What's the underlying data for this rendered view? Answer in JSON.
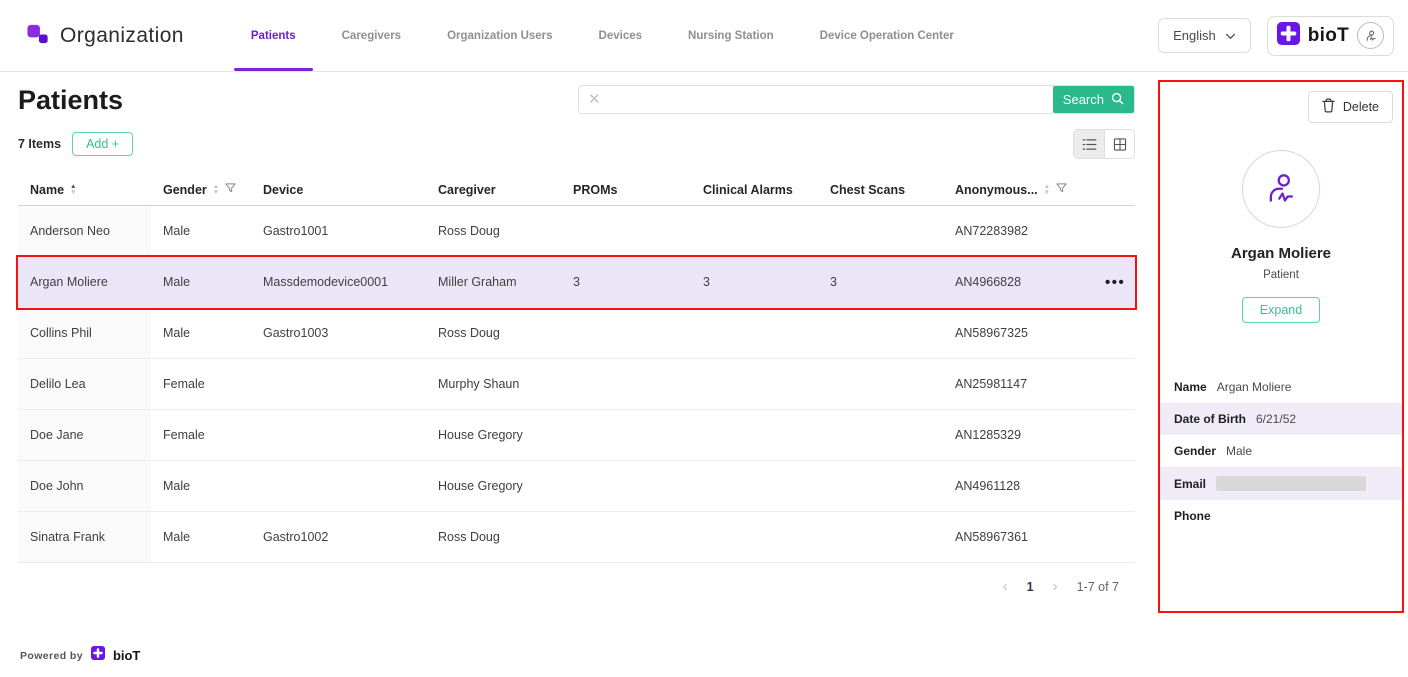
{
  "nav": {
    "logo_text": "Organization",
    "tabs": [
      {
        "label": "Patients",
        "active": true
      },
      {
        "label": "Caregivers",
        "active": false
      },
      {
        "label": "Organization Users",
        "active": false
      },
      {
        "label": "Devices",
        "active": false
      },
      {
        "label": "Nursing Station",
        "active": false
      },
      {
        "label": "Device Operation Center",
        "active": false
      }
    ],
    "language": "English",
    "brand": "bioT"
  },
  "page": {
    "title": "Patients",
    "items_count": "7 Items",
    "add_label": "Add +"
  },
  "search": {
    "value": "",
    "placeholder": "",
    "button_label": "Search"
  },
  "view_toggle": {
    "active": "list"
  },
  "table": {
    "columns": [
      {
        "key": "name",
        "label": "Name",
        "sort": "asc",
        "filter": false
      },
      {
        "key": "gender",
        "label": "Gender",
        "sort": "none",
        "filter": true
      },
      {
        "key": "device",
        "label": "Device",
        "sort": null,
        "filter": false
      },
      {
        "key": "caregiver",
        "label": "Caregiver",
        "sort": null,
        "filter": false
      },
      {
        "key": "proms",
        "label": "PROMs",
        "sort": null,
        "filter": false
      },
      {
        "key": "clinical_alarms",
        "label": "Clinical Alarms",
        "sort": null,
        "filter": false
      },
      {
        "key": "chest_scans",
        "label": "Chest Scans",
        "sort": null,
        "filter": false
      },
      {
        "key": "anonymous_id",
        "label": "Anonymous...",
        "sort": "none",
        "filter": true
      }
    ],
    "rows": [
      {
        "selected": false,
        "cells": [
          "Anderson Neo",
          "Male",
          "Gastro1001",
          "Ross Doug",
          "",
          "",
          "",
          "AN72283982"
        ]
      },
      {
        "selected": true,
        "cells": [
          "Argan Moliere",
          "Male",
          "Massdemodevice0001",
          "Miller Graham",
          "3",
          "3",
          "3",
          "AN4966828"
        ]
      },
      {
        "selected": false,
        "cells": [
          "Collins Phil",
          "Male",
          "Gastro1003",
          "Ross Doug",
          "",
          "",
          "",
          "AN58967325"
        ]
      },
      {
        "selected": false,
        "cells": [
          "Delilo Lea",
          "Female",
          "",
          "Murphy Shaun",
          "",
          "",
          "",
          "AN25981147"
        ]
      },
      {
        "selected": false,
        "cells": [
          "Doe Jane",
          "Female",
          "",
          "House Gregory",
          "",
          "",
          "",
          "AN1285329"
        ]
      },
      {
        "selected": false,
        "cells": [
          "Doe John",
          "Male",
          "",
          "House Gregory",
          "",
          "",
          "",
          "AN4961128"
        ]
      },
      {
        "selected": false,
        "cells": [
          "Sinatra Frank",
          "Male",
          "Gastro1002",
          "Ross Doug",
          "",
          "",
          "",
          "AN58967361"
        ]
      }
    ]
  },
  "pagination": {
    "current_page": "1",
    "range_label": "1-7 of 7"
  },
  "panel": {
    "delete_label": "Delete",
    "name": "Argan Moliere",
    "role": "Patient",
    "expand_label": "Expand",
    "fields": [
      {
        "label": "Name",
        "value": "Argan Moliere",
        "redacted": false
      },
      {
        "label": "Date of Birth",
        "value": "6/21/52",
        "redacted": false
      },
      {
        "label": "Gender",
        "value": "Male",
        "redacted": false
      },
      {
        "label": "Email",
        "value": "",
        "redacted": true
      },
      {
        "label": "Phone",
        "value": "",
        "redacted": false
      }
    ]
  },
  "footer": {
    "powered_by": "Powered by",
    "brand": "bioT"
  },
  "icons": {
    "clear": "✕",
    "more": "•••",
    "prev": "‹",
    "next": "›",
    "sort_up": "▲",
    "sort_down": "▼"
  },
  "colors": {
    "accent_purple": "#7c22d8",
    "accent_green": "#29b98a",
    "outline_green": "#5fd3a8",
    "selected_row_bg": "#eae6f7",
    "annotation_red": "#fb0f0f",
    "shaded_field_bg": "#efecf8"
  }
}
